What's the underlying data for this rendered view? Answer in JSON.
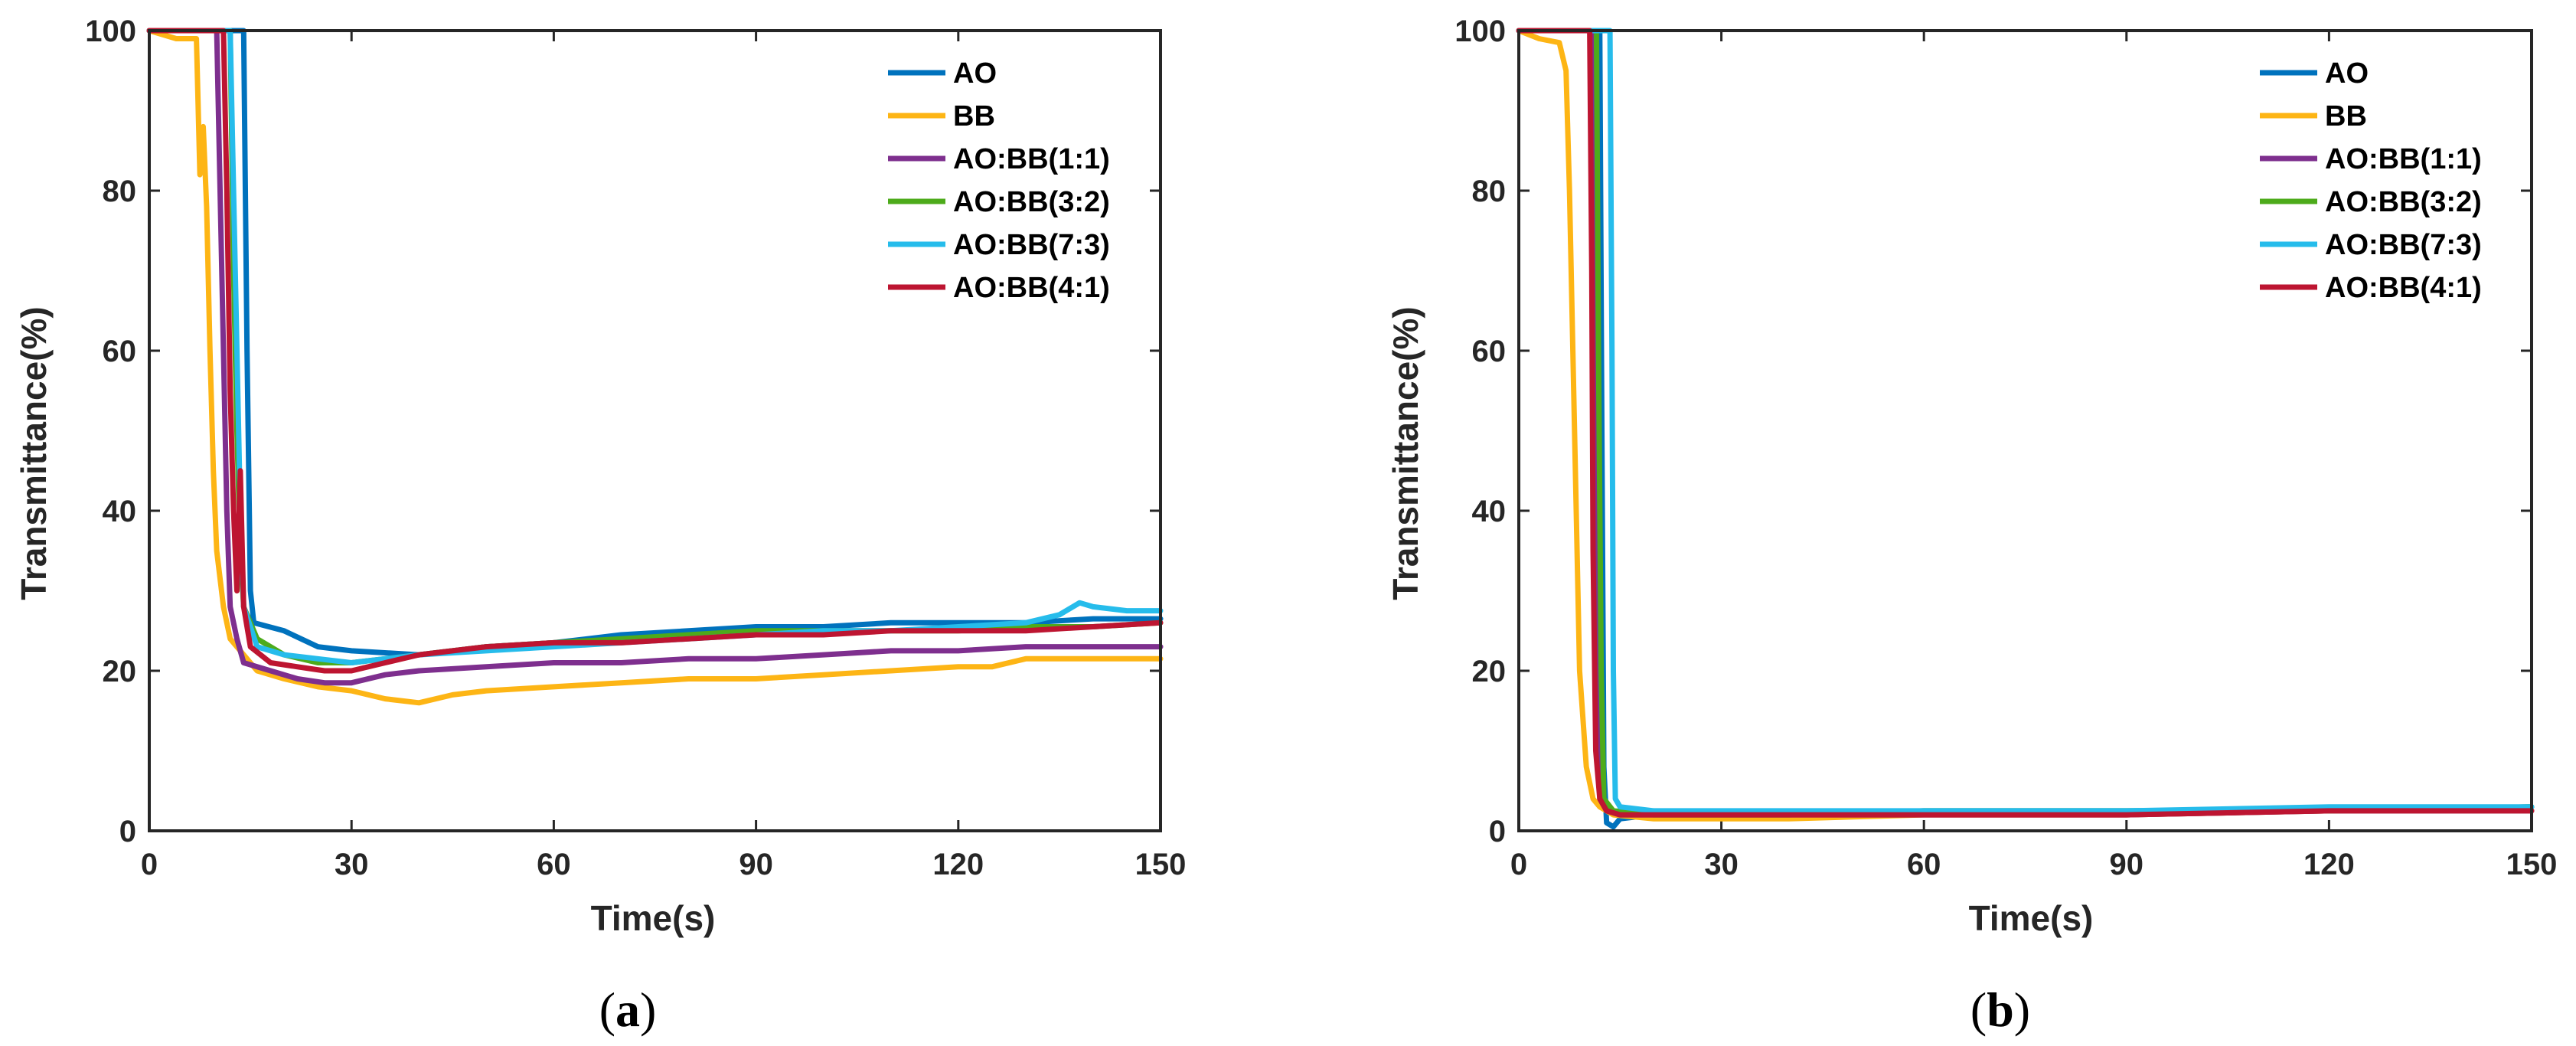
{
  "chart_data": [
    {
      "type": "line",
      "caption_letter": "a",
      "xlabel": "Time(s)",
      "ylabel": "Transmittance(%)",
      "xlim": [
        0,
        150
      ],
      "ylim": [
        0,
        100
      ],
      "xticks": [
        0,
        30,
        60,
        90,
        120,
        150
      ],
      "yticks": [
        0,
        20,
        40,
        60,
        80,
        100
      ],
      "legend_position": "top-right",
      "series": [
        {
          "name": "AO",
          "color": "#0072BD",
          "points": [
            [
              0,
              100
            ],
            [
              14,
              100
            ],
            [
              14.5,
              60
            ],
            [
              15,
              30
            ],
            [
              15.5,
              26
            ],
            [
              20,
              25
            ],
            [
              25,
              23
            ],
            [
              30,
              22.5
            ],
            [
              40,
              22
            ],
            [
              50,
              23
            ],
            [
              60,
              23.5
            ],
            [
              70,
              24.5
            ],
            [
              80,
              25
            ],
            [
              90,
              25.5
            ],
            [
              100,
              25.5
            ],
            [
              110,
              26
            ],
            [
              120,
              26
            ],
            [
              130,
              26
            ],
            [
              140,
              26.5
            ],
            [
              150,
              26.5
            ]
          ]
        },
        {
          "name": "BB",
          "color": "#FDB515",
          "points": [
            [
              0,
              100
            ],
            [
              4,
              99
            ],
            [
              7,
              99
            ],
            [
              7.5,
              82
            ],
            [
              8,
              88
            ],
            [
              8.5,
              78
            ],
            [
              9,
              60
            ],
            [
              9.5,
              45
            ],
            [
              10,
              35
            ],
            [
              11,
              28
            ],
            [
              12,
              24
            ],
            [
              14,
              22
            ],
            [
              16,
              20
            ],
            [
              20,
              19
            ],
            [
              25,
              18
            ],
            [
              30,
              17.5
            ],
            [
              35,
              16.5
            ],
            [
              40,
              16
            ],
            [
              45,
              17
            ],
            [
              50,
              17.5
            ],
            [
              60,
              18
            ],
            [
              70,
              18.5
            ],
            [
              80,
              19
            ],
            [
              90,
              19
            ],
            [
              100,
              19.5
            ],
            [
              110,
              20
            ],
            [
              120,
              20.5
            ],
            [
              125,
              20.5
            ],
            [
              130,
              21.5
            ],
            [
              140,
              21.5
            ],
            [
              150,
              21.5
            ]
          ]
        },
        {
          "name": "AO:BB(1:1)",
          "color": "#7E2F8E",
          "points": [
            [
              0,
              100
            ],
            [
              10,
              100
            ],
            [
              10.5,
              80
            ],
            [
              11,
              60
            ],
            [
              11.5,
              40
            ],
            [
              12,
              28
            ],
            [
              13,
              24
            ],
            [
              14,
              21
            ],
            [
              18,
              20
            ],
            [
              22,
              19
            ],
            [
              26,
              18.5
            ],
            [
              30,
              18.5
            ],
            [
              35,
              19.5
            ],
            [
              40,
              20
            ],
            [
              50,
              20.5
            ],
            [
              60,
              21
            ],
            [
              70,
              21
            ],
            [
              80,
              21.5
            ],
            [
              90,
              21.5
            ],
            [
              100,
              22
            ],
            [
              110,
              22.5
            ],
            [
              120,
              22.5
            ],
            [
              130,
              23
            ],
            [
              140,
              23
            ],
            [
              150,
              23
            ]
          ]
        },
        {
          "name": "AO:BB(3:2)",
          "color": "#4DAB1B",
          "points": [
            [
              0,
              100
            ],
            [
              12,
              100
            ],
            [
              12.5,
              70
            ],
            [
              13,
              50
            ],
            [
              13.5,
              35
            ],
            [
              14,
              28
            ],
            [
              16,
              24
            ],
            [
              20,
              22
            ],
            [
              25,
              21
            ],
            [
              30,
              21
            ],
            [
              35,
              21.5
            ],
            [
              40,
              22
            ],
            [
              50,
              23
            ],
            [
              60,
              23.5
            ],
            [
              70,
              24
            ],
            [
              80,
              24.5
            ],
            [
              90,
              25
            ],
            [
              100,
              25
            ],
            [
              110,
              25
            ],
            [
              120,
              25
            ],
            [
              130,
              25.5
            ],
            [
              140,
              25.5
            ],
            [
              150,
              26
            ]
          ]
        },
        {
          "name": "AO:BB(7:3)",
          "color": "#26BCEB",
          "points": [
            [
              0,
              100
            ],
            [
              12,
              100
            ],
            [
              12.5,
              80
            ],
            [
              13,
              60
            ],
            [
              13.5,
              40
            ],
            [
              14,
              28
            ],
            [
              16,
              23
            ],
            [
              20,
              22
            ],
            [
              25,
              21.5
            ],
            [
              30,
              21
            ],
            [
              35,
              21.5
            ],
            [
              40,
              22
            ],
            [
              50,
              22.5
            ],
            [
              60,
              23
            ],
            [
              70,
              23.5
            ],
            [
              80,
              24
            ],
            [
              90,
              24.5
            ],
            [
              100,
              25
            ],
            [
              110,
              25
            ],
            [
              120,
              25.5
            ],
            [
              130,
              26
            ],
            [
              135,
              27
            ],
            [
              138,
              28.5
            ],
            [
              140,
              28
            ],
            [
              145,
              27.5
            ],
            [
              150,
              27.5
            ]
          ]
        },
        {
          "name": "AO:BB(4:1)",
          "color": "#BD1531",
          "points": [
            [
              0,
              100
            ],
            [
              11,
              100
            ],
            [
              11.5,
              80
            ],
            [
              12,
              55
            ],
            [
              12.5,
              40
            ],
            [
              13,
              30
            ],
            [
              13.5,
              45
            ],
            [
              14,
              28
            ],
            [
              15,
              23
            ],
            [
              18,
              21
            ],
            [
              22,
              20.5
            ],
            [
              26,
              20
            ],
            [
              30,
              20
            ],
            [
              35,
              21
            ],
            [
              40,
              22
            ],
            [
              50,
              23
            ],
            [
              60,
              23.5
            ],
            [
              70,
              23.5
            ],
            [
              80,
              24
            ],
            [
              90,
              24.5
            ],
            [
              100,
              24.5
            ],
            [
              110,
              25
            ],
            [
              120,
              25
            ],
            [
              130,
              25
            ],
            [
              140,
              25.5
            ],
            [
              150,
              26
            ]
          ]
        }
      ]
    },
    {
      "type": "line",
      "caption_letter": "b",
      "xlabel": "Time(s)",
      "ylabel": "Transmittance(%)",
      "xlim": [
        0,
        150
      ],
      "ylim": [
        0,
        100
      ],
      "xticks": [
        0,
        30,
        60,
        90,
        120,
        150
      ],
      "yticks": [
        0,
        20,
        40,
        60,
        80,
        100
      ],
      "legend_position": "top-right",
      "series": [
        {
          "name": "AO",
          "color": "#0072BD",
          "points": [
            [
              0,
              100
            ],
            [
              12,
              100
            ],
            [
              12.3,
              50
            ],
            [
              12.6,
              8
            ],
            [
              13,
              1
            ],
            [
              14,
              0.5
            ],
            [
              15,
              1.5
            ],
            [
              20,
              2
            ],
            [
              30,
              2
            ],
            [
              60,
              2.5
            ],
            [
              90,
              2.5
            ],
            [
              120,
              2.5
            ],
            [
              150,
              3
            ]
          ]
        },
        {
          "name": "BB",
          "color": "#FDB515",
          "points": [
            [
              0,
              100
            ],
            [
              3,
              99
            ],
            [
              6,
              98.5
            ],
            [
              7,
              95
            ],
            [
              7.5,
              80
            ],
            [
              8,
              60
            ],
            [
              8.5,
              40
            ],
            [
              9,
              20
            ],
            [
              10,
              8
            ],
            [
              11,
              4
            ],
            [
              12,
              3
            ],
            [
              14,
              2
            ],
            [
              20,
              1.5
            ],
            [
              40,
              1.5
            ],
            [
              60,
              2
            ],
            [
              90,
              2
            ],
            [
              120,
              2.5
            ],
            [
              150,
              2.5
            ]
          ]
        },
        {
          "name": "AO:BB(1:1)",
          "color": "#7E2F8E",
          "points": [
            [
              0,
              100
            ],
            [
              11,
              100
            ],
            [
              11.3,
              60
            ],
            [
              11.6,
              20
            ],
            [
              12,
              4
            ],
            [
              13,
              2.5
            ],
            [
              15,
              2
            ],
            [
              30,
              2
            ],
            [
              60,
              2
            ],
            [
              90,
              2
            ],
            [
              120,
              2.5
            ],
            [
              150,
              2.5
            ]
          ]
        },
        {
          "name": "AO:BB(3:2)",
          "color": "#4DAB1B",
          "points": [
            [
              0,
              100
            ],
            [
              11.5,
              100
            ],
            [
              11.8,
              60
            ],
            [
              12.2,
              20
            ],
            [
              12.6,
              4
            ],
            [
              14,
              2.5
            ],
            [
              20,
              2
            ],
            [
              40,
              2
            ],
            [
              60,
              2.5
            ],
            [
              90,
              2.5
            ],
            [
              120,
              2.5
            ],
            [
              150,
              3
            ]
          ]
        },
        {
          "name": "AO:BB(7:3)",
          "color": "#26BCEB",
          "points": [
            [
              0,
              100
            ],
            [
              13.5,
              100
            ],
            [
              13.8,
              60
            ],
            [
              14,
              20
            ],
            [
              14.3,
              4
            ],
            [
              15,
              3
            ],
            [
              20,
              2.5
            ],
            [
              40,
              2.5
            ],
            [
              60,
              2.5
            ],
            [
              90,
              2.5
            ],
            [
              120,
              3
            ],
            [
              150,
              3
            ]
          ]
        },
        {
          "name": "AO:BB(4:1)",
          "color": "#BD1531",
          "points": [
            [
              0,
              100
            ],
            [
              10.5,
              100
            ],
            [
              10.8,
              70
            ],
            [
              11,
              35
            ],
            [
              11.4,
              10
            ],
            [
              12,
              4
            ],
            [
              13,
              2.5
            ],
            [
              15,
              2
            ],
            [
              30,
              2
            ],
            [
              60,
              2
            ],
            [
              90,
              2
            ],
            [
              120,
              2.5
            ],
            [
              150,
              2.5
            ]
          ]
        }
      ]
    }
  ]
}
